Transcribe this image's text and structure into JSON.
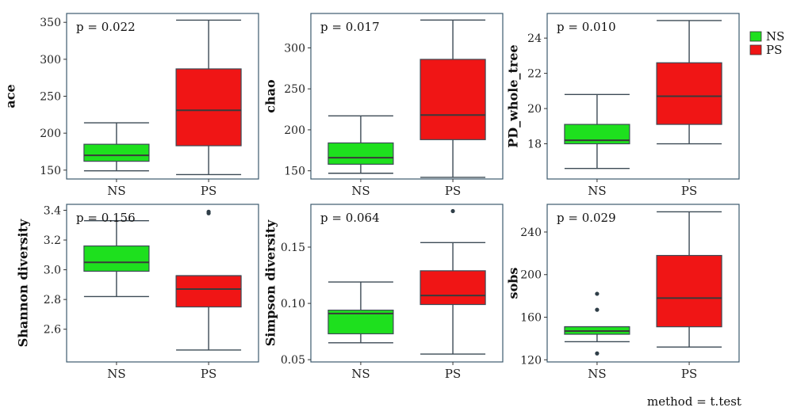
{
  "colors": {
    "NS": "#1ee01e",
    "PS": "#f01515",
    "panel_border": "#3c5a6e",
    "whisker": "#3c4a55"
  },
  "legend": {
    "items": [
      {
        "label": "NS",
        "color": "#1ee01e"
      },
      {
        "label": "PS",
        "color": "#f01515"
      }
    ]
  },
  "method_note": "method = t.test",
  "chart_data": [
    {
      "type": "box",
      "ylabel": "ace",
      "pvalue": "p = 0.022",
      "ylim": [
        138,
        362
      ],
      "yticks": [
        150,
        200,
        250,
        300,
        350
      ],
      "categories": [
        "NS",
        "PS"
      ],
      "boxes": [
        {
          "group": "NS",
          "min": 149,
          "q1": 162,
          "median": 170,
          "q3": 185,
          "max": 214,
          "outliers": []
        },
        {
          "group": "PS",
          "min": 144,
          "q1": 183,
          "median": 231,
          "q3": 287,
          "max": 353,
          "outliers": []
        }
      ]
    },
    {
      "type": "box",
      "ylabel": "chao",
      "pvalue": "p = 0.017",
      "ylim": [
        140,
        342
      ],
      "yticks": [
        150,
        200,
        250,
        300
      ],
      "categories": [
        "NS",
        "PS"
      ],
      "boxes": [
        {
          "group": "NS",
          "min": 147,
          "q1": 158,
          "median": 166,
          "q3": 184,
          "max": 217,
          "outliers": []
        },
        {
          "group": "PS",
          "min": 142,
          "q1": 188,
          "median": 218,
          "q3": 286,
          "max": 334,
          "outliers": []
        }
      ]
    },
    {
      "type": "box",
      "ylabel": "PD_whole_tree",
      "pvalue": "p = 0.010",
      "ylim": [
        16.0,
        25.4
      ],
      "yticks": [
        18,
        20,
        22,
        24
      ],
      "categories": [
        "NS",
        "PS"
      ],
      "boxes": [
        {
          "group": "NS",
          "min": 16.6,
          "q1": 18.0,
          "median": 18.2,
          "q3": 19.1,
          "max": 20.8,
          "outliers": []
        },
        {
          "group": "PS",
          "min": 18.0,
          "q1": 19.1,
          "median": 20.7,
          "q3": 22.6,
          "max": 25.0,
          "outliers": []
        }
      ]
    },
    {
      "type": "box",
      "ylabel": "Shannon diversity",
      "pvalue": "p = 0.156",
      "ylim": [
        2.38,
        3.44
      ],
      "yticks": [
        2.6,
        2.8,
        3.0,
        3.2,
        3.4
      ],
      "tick_labels": [
        "2.6",
        "2.8",
        "3.0",
        "3.2",
        "3.4"
      ],
      "categories": [
        "NS",
        "PS"
      ],
      "boxes": [
        {
          "group": "NS",
          "min": 2.82,
          "q1": 2.99,
          "median": 3.05,
          "q3": 3.16,
          "max": 3.33,
          "outliers": []
        },
        {
          "group": "PS",
          "min": 2.46,
          "q1": 2.75,
          "median": 2.87,
          "q3": 2.96,
          "max": 2.96,
          "outliers": [
            3.38,
            3.39
          ]
        }
      ]
    },
    {
      "type": "box",
      "ylabel": "Simpson diversity",
      "pvalue": "p = 0.064",
      "ylim": [
        0.048,
        0.188
      ],
      "yticks": [
        0.05,
        0.1,
        0.15
      ],
      "tick_labels": [
        "0.05",
        "0.10",
        "0.15"
      ],
      "categories": [
        "NS",
        "PS"
      ],
      "boxes": [
        {
          "group": "NS",
          "min": 0.065,
          "q1": 0.073,
          "median": 0.091,
          "q3": 0.094,
          "max": 0.119,
          "outliers": []
        },
        {
          "group": "PS",
          "min": 0.055,
          "q1": 0.099,
          "median": 0.107,
          "q3": 0.129,
          "max": 0.154,
          "outliers": [
            0.182
          ]
        }
      ]
    },
    {
      "type": "box",
      "ylabel": "sobs",
      "pvalue": "p = 0.029",
      "ylim": [
        118,
        266
      ],
      "yticks": [
        120,
        160,
        200,
        240
      ],
      "categories": [
        "NS",
        "PS"
      ],
      "boxes": [
        {
          "group": "NS",
          "min": 137,
          "q1": 144,
          "median": 147,
          "q3": 151,
          "max": 151,
          "outliers": [
            126,
            167,
            182
          ]
        },
        {
          "group": "PS",
          "min": 132,
          "q1": 151,
          "median": 178,
          "q3": 218,
          "max": 259,
          "outliers": []
        }
      ]
    }
  ]
}
